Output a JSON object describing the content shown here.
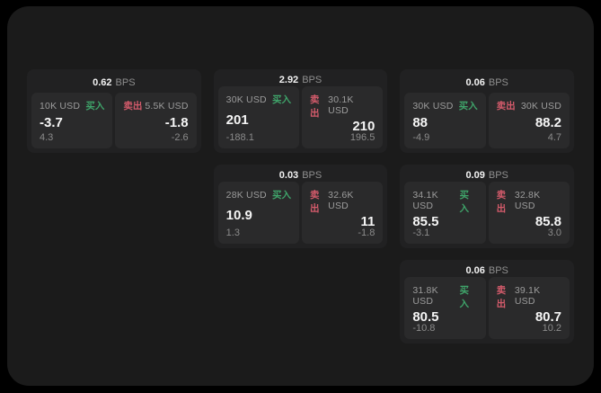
{
  "labels": {
    "buy": "买入",
    "sell": "卖出",
    "bps_unit": "BPS"
  },
  "colors": {
    "outer_background": "#000000",
    "page_background": "#1b1b1b",
    "card_background": "#212122",
    "panel_background": "#2a2a2b",
    "buy_green": "#3fa46a",
    "sell_red": "#d45b6b",
    "value_white": "#f5f5f5",
    "label_gray": "#9c9c9c"
  },
  "cards": [
    {
      "row": 1,
      "col": 1,
      "bps": "0.62",
      "buy": {
        "size": "10K USD",
        "value": "-3.7",
        "sub": "4.3"
      },
      "sell": {
        "size": "5.5K USD",
        "value": "-1.8",
        "sub": "-2.6"
      }
    },
    {
      "row": 1,
      "col": 2,
      "bps": "2.92",
      "buy": {
        "size": "30K USD",
        "value": "201",
        "sub": "-188.1"
      },
      "sell": {
        "size": "30.1K USD",
        "value": "210",
        "sub": "196.5"
      }
    },
    {
      "row": 1,
      "col": 3,
      "bps": "0.06",
      "buy": {
        "size": "30K USD",
        "value": "88",
        "sub": "-4.9"
      },
      "sell": {
        "size": "30K USD",
        "value": "88.2",
        "sub": "4.7"
      }
    },
    {
      "row": 2,
      "col": 2,
      "bps": "0.03",
      "buy": {
        "size": "28K USD",
        "value": "10.9",
        "sub": "1.3"
      },
      "sell": {
        "size": "32.6K USD",
        "value": "11",
        "sub": "-1.8"
      }
    },
    {
      "row": 2,
      "col": 3,
      "bps": "0.09",
      "buy": {
        "size": "34.1K USD",
        "value": "85.5",
        "sub": "-3.1"
      },
      "sell": {
        "size": "32.8K USD",
        "value": "85.8",
        "sub": "3.0"
      }
    },
    {
      "row": 3,
      "col": 3,
      "bps": "0.06",
      "buy": {
        "size": "31.8K USD",
        "value": "80.5",
        "sub": "-10.8"
      },
      "sell": {
        "size": "39.1K USD",
        "value": "80.7",
        "sub": "10.2"
      }
    }
  ]
}
